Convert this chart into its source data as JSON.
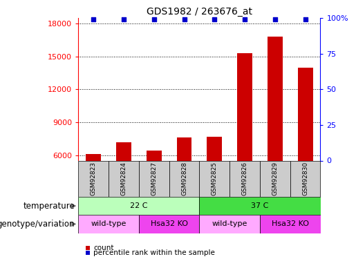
{
  "title": "GDS1982 / 263676_at",
  "samples": [
    "GSM92823",
    "GSM92824",
    "GSM92827",
    "GSM92828",
    "GSM92825",
    "GSM92826",
    "GSM92829",
    "GSM92830"
  ],
  "counts": [
    6100,
    7200,
    6400,
    7600,
    7700,
    15300,
    16800,
    14000
  ],
  "percentile_ranks": [
    99,
    99,
    99,
    99,
    99,
    99,
    99,
    99
  ],
  "ylim_left": [
    5500,
    18500
  ],
  "ylim_right": [
    0,
    100
  ],
  "yticks_left": [
    6000,
    9000,
    12000,
    15000,
    18000
  ],
  "yticks_right": [
    0,
    25,
    50,
    75,
    100
  ],
  "ytick_labels_right": [
    "0",
    "25",
    "50",
    "75",
    "100%"
  ],
  "bar_color": "#cc0000",
  "dot_color": "#0000cc",
  "bar_width": 0.5,
  "sample_box_color": "#cccccc",
  "temperature_groups": [
    {
      "label": "22 C",
      "start": 0,
      "end": 3,
      "color": "#bbffbb"
    },
    {
      "label": "37 C",
      "start": 4,
      "end": 7,
      "color": "#44dd44"
    }
  ],
  "genotype_groups": [
    {
      "label": "wild-type",
      "start": 0,
      "end": 1,
      "color": "#ffaaff"
    },
    {
      "label": "Hsa32 KO",
      "start": 2,
      "end": 3,
      "color": "#ee44ee"
    },
    {
      "label": "wild-type",
      "start": 4,
      "end": 5,
      "color": "#ffaaff"
    },
    {
      "label": "Hsa32 KO",
      "start": 6,
      "end": 7,
      "color": "#ee44ee"
    }
  ],
  "row_label_temperature": "temperature",
  "row_label_genotype": "genotype/variation",
  "legend_count_color": "#cc0000",
  "legend_pct_color": "#0000cc",
  "legend_count_label": "count",
  "legend_pct_label": "percentile rank within the sample",
  "title_fontsize": 10,
  "tick_label_fontsize": 8,
  "label_fontsize": 8.5
}
